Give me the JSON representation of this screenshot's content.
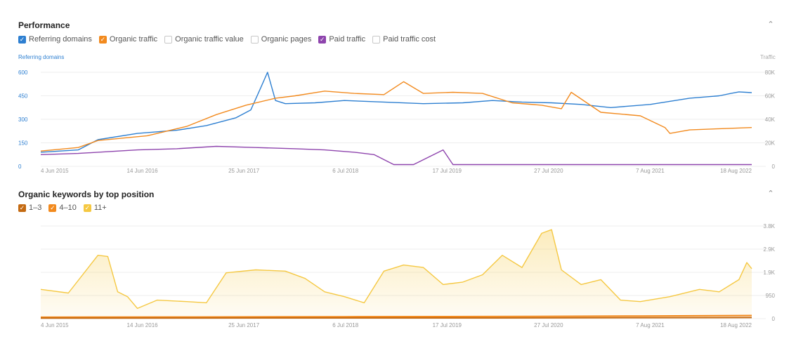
{
  "performance": {
    "title": "Performance",
    "collapse_icon": "chevron-up-icon",
    "legend": [
      {
        "label": "Referring domains",
        "checked": true,
        "color": "#2d7fd1"
      },
      {
        "label": "Organic traffic",
        "checked": true,
        "color": "#f28a1e"
      },
      {
        "label": "Organic traffic value",
        "checked": false,
        "color": "#c8c8c8"
      },
      {
        "label": "Organic pages",
        "checked": false,
        "color": "#c8c8c8"
      },
      {
        "label": "Paid traffic",
        "checked": true,
        "color": "#8e44ad"
      },
      {
        "label": "Paid traffic cost",
        "checked": false,
        "color": "#c8c8c8"
      }
    ],
    "left_axis_label": "Referring domains",
    "right_axis_label": "Traffic"
  },
  "keywords": {
    "title": "Organic keywords by top position",
    "collapse_icon": "chevron-up-icon",
    "legend": [
      {
        "label": "1–3",
        "checked": true,
        "color": "#c46a12"
      },
      {
        "label": "4–10",
        "checked": true,
        "color": "#f28a1e"
      },
      {
        "label": "11+",
        "checked": true,
        "color": "#f5c842"
      }
    ]
  },
  "chart_data": [
    {
      "type": "line",
      "title": "Performance",
      "x_ticks": [
        "4 Jun 2015",
        "14 Jun 2016",
        "25 Jun 2017",
        "6 Jul 2018",
        "17 Jul 2019",
        "27 Jul 2020",
        "7 Aug 2021",
        "18 Aug 2022"
      ],
      "x_range": [
        2015.42,
        2022.63
      ],
      "y_left": {
        "label": "Referring domains",
        "ticks": [
          "0",
          "150",
          "300",
          "450",
          "600"
        ],
        "ylim": [
          0,
          600
        ]
      },
      "y_right": {
        "label": "Traffic",
        "ticks": [
          "0",
          "20K",
          "40K",
          "60K",
          "80K"
        ],
        "ylim": [
          0,
          80000
        ]
      },
      "grid": true,
      "series": [
        {
          "name": "Referring domains",
          "axis": "left",
          "color": "#2d7fd1",
          "x": [
            2015.42,
            2015.8,
            2016.0,
            2016.4,
            2016.8,
            2017.1,
            2017.4,
            2017.55,
            2017.65,
            2017.72,
            2017.8,
            2017.9,
            2018.2,
            2018.5,
            2018.9,
            2019.3,
            2019.7,
            2020.0,
            2020.3,
            2020.6,
            2020.9,
            2021.2,
            2021.6,
            2022.0,
            2022.3,
            2022.42,
            2022.5,
            2022.63
          ],
          "y": [
            90,
            105,
            170,
            210,
            230,
            260,
            310,
            360,
            500,
            600,
            420,
            400,
            405,
            420,
            410,
            400,
            405,
            420,
            410,
            405,
            395,
            375,
            395,
            435,
            450,
            465,
            475,
            470
          ]
        },
        {
          "name": "Organic traffic",
          "axis": "right",
          "color": "#f28a1e",
          "x": [
            2015.42,
            2015.8,
            2016.0,
            2016.5,
            2016.9,
            2017.2,
            2017.5,
            2017.8,
            2018.0,
            2018.3,
            2018.6,
            2018.9,
            2019.1,
            2019.3,
            2019.6,
            2019.9,
            2020.2,
            2020.5,
            2020.7,
            2020.8,
            2021.1,
            2021.5,
            2021.75,
            2021.8,
            2022.0,
            2022.3,
            2022.63
          ],
          "y": [
            13000,
            16000,
            22000,
            26000,
            34000,
            44000,
            52000,
            58000,
            60000,
            64000,
            62000,
            61000,
            72000,
            62000,
            63000,
            62000,
            54000,
            52000,
            49000,
            63000,
            46000,
            43000,
            33000,
            28000,
            31000,
            32000,
            33000
          ]
        },
        {
          "name": "Paid traffic",
          "axis": "right",
          "color": "#8e44ad",
          "x": [
            2015.42,
            2015.8,
            2016.0,
            2016.4,
            2016.8,
            2017.2,
            2017.6,
            2018.0,
            2018.3,
            2018.6,
            2018.8,
            2019.0,
            2019.2,
            2019.5,
            2019.6,
            2022.63
          ],
          "y": [
            10000,
            11000,
            12000,
            14000,
            15000,
            17000,
            16000,
            15000,
            14000,
            12000,
            10000,
            1500,
            1500,
            14000,
            1500,
            1500
          ]
        }
      ]
    },
    {
      "type": "area",
      "title": "Organic keywords by top position",
      "x_ticks": [
        "4 Jun 2015",
        "14 Jun 2016",
        "25 Jun 2017",
        "6 Jul 2018",
        "17 Jul 2019",
        "27 Jul 2020",
        "7 Aug 2021",
        "18 Aug 2022"
      ],
      "x_range": [
        2015.42,
        2022.63
      ],
      "y": {
        "ticks": [
          "0",
          "950",
          "1.9K",
          "2.9K",
          "3.8K"
        ],
        "ylim": [
          0,
          3800
        ]
      },
      "grid": true,
      "series": [
        {
          "name": "11+",
          "color": "#f5c842",
          "x": [
            2015.42,
            2015.7,
            2016.0,
            2016.1,
            2016.2,
            2016.3,
            2016.4,
            2016.6,
            2016.9,
            2017.1,
            2017.3,
            2017.6,
            2017.9,
            2018.1,
            2018.3,
            2018.5,
            2018.7,
            2018.9,
            2019.1,
            2019.3,
            2019.5,
            2019.7,
            2019.9,
            2020.1,
            2020.3,
            2020.5,
            2020.6,
            2020.7,
            2020.9,
            2021.1,
            2021.3,
            2021.5,
            2021.8,
            2022.1,
            2022.3,
            2022.5,
            2022.58,
            2022.63
          ],
          "y": [
            1200,
            1050,
            2600,
            2550,
            1100,
            900,
            420,
            760,
            700,
            650,
            1880,
            2000,
            1950,
            1650,
            1100,
            900,
            650,
            1950,
            2200,
            2100,
            1400,
            1500,
            1800,
            2600,
            2100,
            3500,
            3650,
            2000,
            1400,
            1600,
            760,
            700,
            900,
            1200,
            1100,
            1600,
            2300,
            2050
          ]
        },
        {
          "name": "4–10",
          "color": "#f28a1e",
          "x": [
            2015.42,
            2017.0,
            2018.5,
            2020.0,
            2021.5,
            2022.63
          ],
          "y": [
            60,
            70,
            80,
            90,
            110,
            130
          ]
        },
        {
          "name": "1–3",
          "color": "#c46a12",
          "x": [
            2015.42,
            2017.0,
            2018.5,
            2020.0,
            2021.5,
            2022.63
          ],
          "y": [
            20,
            25,
            30,
            30,
            40,
            45
          ]
        }
      ]
    }
  ]
}
